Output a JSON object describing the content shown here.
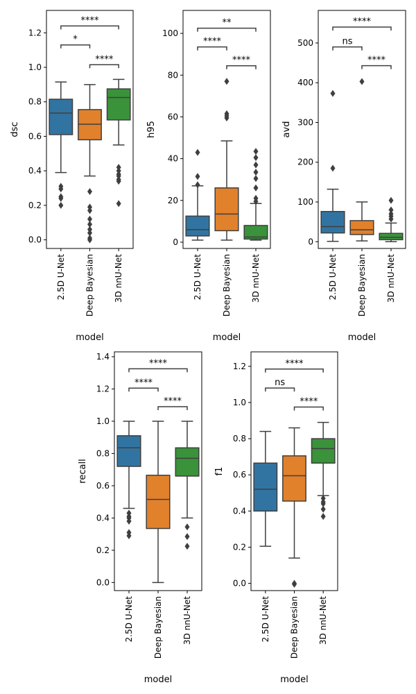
{
  "chart_data": [
    {
      "type": "box",
      "ylabel": "dsc",
      "xlabel": "model",
      "ylim": [
        -0.05,
        1.33
      ],
      "yticks": [
        "0.0",
        "0.2",
        "0.4",
        "0.6",
        "0.8",
        "1.0",
        "1.2"
      ],
      "ytick_values": [
        0.0,
        0.2,
        0.4,
        0.6,
        0.8,
        1.0,
        1.2
      ],
      "categories": [
        "2.5D U-Net",
        "Deep Bayesian",
        "3D nnU-Net"
      ],
      "boxes": [
        {
          "q1": 0.61,
          "median": 0.735,
          "q3": 0.815,
          "whisker_low": 0.39,
          "whisker_high": 0.915,
          "outliers": [
            0.31,
            0.295,
            0.25,
            0.24,
            0.2
          ]
        },
        {
          "q1": 0.58,
          "median": 0.67,
          "q3": 0.755,
          "whisker_low": 0.37,
          "whisker_high": 0.9,
          "outliers": [
            0.28,
            0.19,
            0.17,
            0.12,
            0.09,
            0.06,
            0.04,
            0.01,
            0.0
          ]
        },
        {
          "q1": 0.695,
          "median": 0.825,
          "q3": 0.875,
          "whisker_low": 0.55,
          "whisker_high": 0.93,
          "outliers": [
            0.42,
            0.4,
            0.38,
            0.37,
            0.35,
            0.34,
            0.21
          ]
        }
      ],
      "significance": [
        {
          "from": 0,
          "to": 1,
          "value": 1.13,
          "label": "*"
        },
        {
          "from": 1,
          "to": 2,
          "value": 1.015,
          "label": "****"
        },
        {
          "from": 0,
          "to": 2,
          "value": 1.24,
          "label": "****"
        }
      ]
    },
    {
      "type": "box",
      "ylabel": "h95",
      "xlabel": "model",
      "ylim": [
        -3,
        111
      ],
      "yticks": [
        "0",
        "20",
        "40",
        "60",
        "80",
        "100"
      ],
      "ytick_values": [
        0,
        20,
        40,
        60,
        80,
        100
      ],
      "categories": [
        "2.5D U-Net",
        "Deep Bayesian",
        "3D nnU-Net"
      ],
      "boxes": [
        {
          "q1": 3.0,
          "median": 6.0,
          "q3": 12.5,
          "whisker_low": 1.0,
          "whisker_high": 27.0,
          "outliers": [
            43.0,
            31.5,
            27.5
          ]
        },
        {
          "q1": 5.5,
          "median": 13.5,
          "q3": 26.0,
          "whisker_low": 1.0,
          "whisker_high": 48.5,
          "outliers": [
            77.0,
            61.5,
            60.5,
            59.5
          ]
        },
        {
          "q1": 1.5,
          "median": 2.5,
          "q3": 8.0,
          "whisker_low": 1.0,
          "whisker_high": 18.5,
          "outliers": [
            43.5,
            40.5,
            37.0,
            33.5,
            30.5,
            26.0,
            21.0,
            19.5
          ]
        }
      ],
      "significance": [
        {
          "from": 0,
          "to": 1,
          "value": 93.5,
          "label": "****"
        },
        {
          "from": 1,
          "to": 2,
          "value": 84.5,
          "label": "****"
        },
        {
          "from": 0,
          "to": 2,
          "value": 102.5,
          "label": "**"
        }
      ]
    },
    {
      "type": "box",
      "ylabel": "avd",
      "xlabel": "model",
      "ylim": [
        -17,
        582
      ],
      "yticks": [
        "0",
        "100",
        "200",
        "300",
        "400",
        "500"
      ],
      "ytick_values": [
        0,
        100,
        200,
        300,
        400,
        500
      ],
      "categories": [
        "2.5D U-Net",
        "Deep Bayesian",
        "3D nnU-Net"
      ],
      "boxes": [
        {
          "q1": 22.0,
          "median": 38.0,
          "q3": 76.0,
          "whisker_low": 1.0,
          "whisker_high": 132.0,
          "outliers": [
            373.0,
            185.0
          ]
        },
        {
          "q1": 18.0,
          "median": 30.0,
          "q3": 53.0,
          "whisker_low": 2.0,
          "whisker_high": 100.0,
          "outliers": [
            403.0
          ]
        },
        {
          "q1": 5.0,
          "median": 11.0,
          "q3": 21.0,
          "whisker_low": 0.0,
          "whisker_high": 47.0,
          "outliers": [
            104.0,
            80.0,
            70.0,
            64.0,
            57.0
          ]
        }
      ],
      "significance": [
        {
          "from": 0,
          "to": 1,
          "value": 490.0,
          "label": "ns"
        },
        {
          "from": 1,
          "to": 2,
          "value": 443.0,
          "label": "****"
        },
        {
          "from": 0,
          "to": 2,
          "value": 540.0,
          "label": "****"
        }
      ]
    },
    {
      "type": "box",
      "ylabel": "recall",
      "xlabel": "model",
      "ylim": [
        -0.05,
        1.43
      ],
      "yticks": [
        "0.0",
        "0.2",
        "0.4",
        "0.6",
        "0.8",
        "1.0",
        "1.2",
        "1.4"
      ],
      "ytick_values": [
        0.0,
        0.2,
        0.4,
        0.6,
        0.8,
        1.0,
        1.2,
        1.4
      ],
      "categories": [
        "2.5D U-Net",
        "Deep Bayesian",
        "3D nnU-Net"
      ],
      "boxes": [
        {
          "q1": 0.72,
          "median": 0.835,
          "q3": 0.91,
          "whisker_low": 0.46,
          "whisker_high": 1.0,
          "outliers": [
            0.43,
            0.41,
            0.4,
            0.38,
            0.31,
            0.29
          ]
        },
        {
          "q1": 0.335,
          "median": 0.515,
          "q3": 0.665,
          "whisker_low": 0.0,
          "whisker_high": 1.0,
          "outliers": []
        },
        {
          "q1": 0.66,
          "median": 0.77,
          "q3": 0.835,
          "whisker_low": 0.4,
          "whisker_high": 1.0,
          "outliers": [
            0.345,
            0.285,
            0.225
          ]
        }
      ],
      "significance": [
        {
          "from": 0,
          "to": 1,
          "value": 1.205,
          "label": "****"
        },
        {
          "from": 1,
          "to": 2,
          "value": 1.09,
          "label": "****"
        },
        {
          "from": 0,
          "to": 2,
          "value": 1.325,
          "label": "****"
        }
      ]
    },
    {
      "type": "box",
      "ylabel": "f1",
      "xlabel": "model",
      "ylim": [
        -0.04,
        1.28
      ],
      "yticks": [
        "0.0",
        "0.2",
        "0.4",
        "0.6",
        "0.8",
        "1.0",
        "1.2"
      ],
      "ytick_values": [
        0.0,
        0.2,
        0.4,
        0.6,
        0.8,
        1.0,
        1.2
      ],
      "categories": [
        "2.5D U-Net",
        "Deep Bayesian",
        "3D nnU-Net"
      ],
      "boxes": [
        {
          "q1": 0.4,
          "median": 0.52,
          "q3": 0.665,
          "whisker_low": 0.205,
          "whisker_high": 0.84,
          "outliers": []
        },
        {
          "q1": 0.455,
          "median": 0.595,
          "q3": 0.705,
          "whisker_low": 0.14,
          "whisker_high": 0.86,
          "outliers": [
            0.0,
            -0.005
          ]
        },
        {
          "q1": 0.665,
          "median": 0.745,
          "q3": 0.8,
          "whisker_low": 0.485,
          "whisker_high": 0.89,
          "outliers": [
            0.47,
            0.45,
            0.44,
            0.41,
            0.37
          ]
        }
      ],
      "significance": [
        {
          "from": 0,
          "to": 1,
          "value": 1.08,
          "label": "ns"
        },
        {
          "from": 1,
          "to": 2,
          "value": 0.975,
          "label": "****"
        },
        {
          "from": 0,
          "to": 2,
          "value": 1.185,
          "label": "****"
        }
      ]
    }
  ],
  "colors": {
    "series": [
      "#3274a1",
      "#e1812c",
      "#3a923a"
    ],
    "line": "#3f3f3f"
  }
}
